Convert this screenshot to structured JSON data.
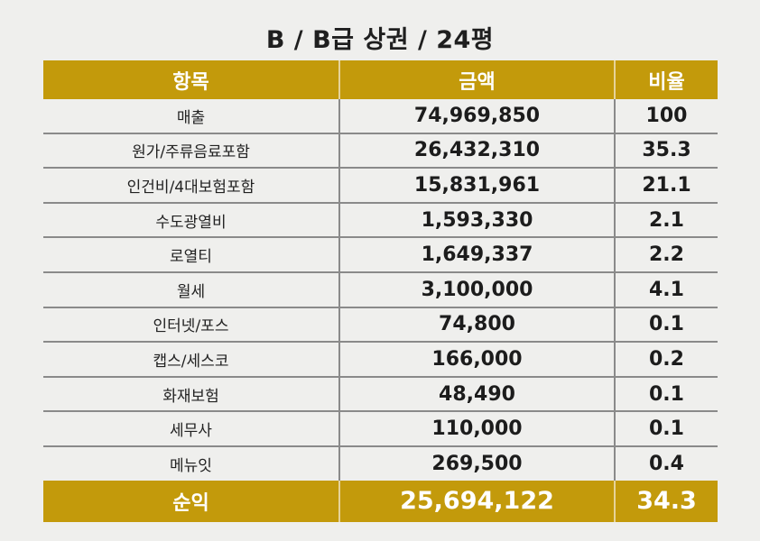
{
  "title": "B / B급 상권 / 24평",
  "header": {
    "item": "항목",
    "amount": "금액",
    "ratio": "비율"
  },
  "rows": [
    {
      "item": "매출",
      "amount": "74,969,850",
      "ratio": "100"
    },
    {
      "item": "원가/주류음료포함",
      "amount": "26,432,310",
      "ratio": "35.3"
    },
    {
      "item": "인건비/4대보험포함",
      "amount": "15,831,961",
      "ratio": "21.1"
    },
    {
      "item": "수도광열비",
      "amount": "1,593,330",
      "ratio": "2.1"
    },
    {
      "item": "로열티",
      "amount": "1,649,337",
      "ratio": "2.2"
    },
    {
      "item": "월세",
      "amount": "3,100,000",
      "ratio": "4.1"
    },
    {
      "item": "인터넷/포스",
      "amount": "74,800",
      "ratio": "0.1"
    },
    {
      "item": "캡스/세스코",
      "amount": "166,000",
      "ratio": "0.2"
    },
    {
      "item": "화재보험",
      "amount": "48,490",
      "ratio": "0.1"
    },
    {
      "item": "세무사",
      "amount": "110,000",
      "ratio": "0.1"
    },
    {
      "item": "메뉴잇",
      "amount": "269,500",
      "ratio": "0.4"
    }
  ],
  "footer": {
    "item": "순익",
    "amount": "25,694,122",
    "ratio": "34.3"
  },
  "colors": {
    "header_bg": "#c39a0b",
    "page_bg": "#efefed"
  }
}
